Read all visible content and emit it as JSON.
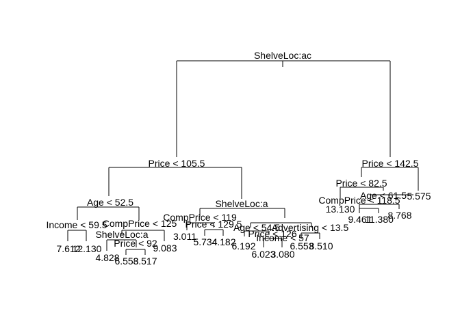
{
  "title": "",
  "nodes": [
    {
      "id": "n1",
      "label": "ShelveLoc:ac"
    },
    {
      "id": "n2",
      "label": "Price < 105.5"
    },
    {
      "id": "n3",
      "label": "Price < 142.5"
    },
    {
      "id": "n4",
      "label": "Age < 52.5"
    },
    {
      "id": "n5",
      "label": "ShelveLoc:a"
    },
    {
      "id": "n6",
      "label": "Income < 59.5"
    },
    {
      "id": "n7",
      "label": "CompPrice < 125"
    },
    {
      "id": "n8",
      "label": "ShelveLoc:a"
    },
    {
      "id": "n9",
      "label": "Price < 92"
    },
    {
      "id": "n10",
      "label": "CompPrice < 119"
    },
    {
      "id": "n11",
      "label": "Price < 129.5"
    },
    {
      "id": "n12",
      "label": "Income < 57"
    },
    {
      "id": "n13",
      "label": "Age < 54.5"
    },
    {
      "id": "n14",
      "label": "Advertising < 13.5"
    },
    {
      "id": "n15",
      "label": "Price < 126"
    },
    {
      "id": "n16",
      "label": "Price < 82.5"
    },
    {
      "id": "n17",
      "label": "CompPrice < 118.5"
    },
    {
      "id": "n18",
      "label": "Age < 61.5"
    }
  ],
  "leaves": [
    {
      "id": "l1",
      "value": "7.612"
    },
    {
      "id": "l2",
      "value": "12.130"
    },
    {
      "id": "l3",
      "value": "4.828"
    },
    {
      "id": "l4",
      "value": "6.553"
    },
    {
      "id": "l5",
      "value": "8.517"
    },
    {
      "id": "l6",
      "value": "9.083"
    },
    {
      "id": "l7",
      "value": "3.011"
    },
    {
      "id": "l8",
      "value": "5.734"
    },
    {
      "id": "l9",
      "value": "4.182"
    },
    {
      "id": "l10",
      "value": "6.192"
    },
    {
      "id": "l11",
      "value": "6.023"
    },
    {
      "id": "l12",
      "value": "3.080"
    },
    {
      "id": "l13",
      "value": "6.553"
    },
    {
      "id": "l14",
      "value": "8.510"
    },
    {
      "id": "l15",
      "value": "13.130"
    },
    {
      "id": "l16",
      "value": "9.461"
    },
    {
      "id": "l17",
      "value": "11.380"
    },
    {
      "id": "l18",
      "value": "8.768"
    },
    {
      "id": "l19",
      "value": "5.575"
    }
  ]
}
